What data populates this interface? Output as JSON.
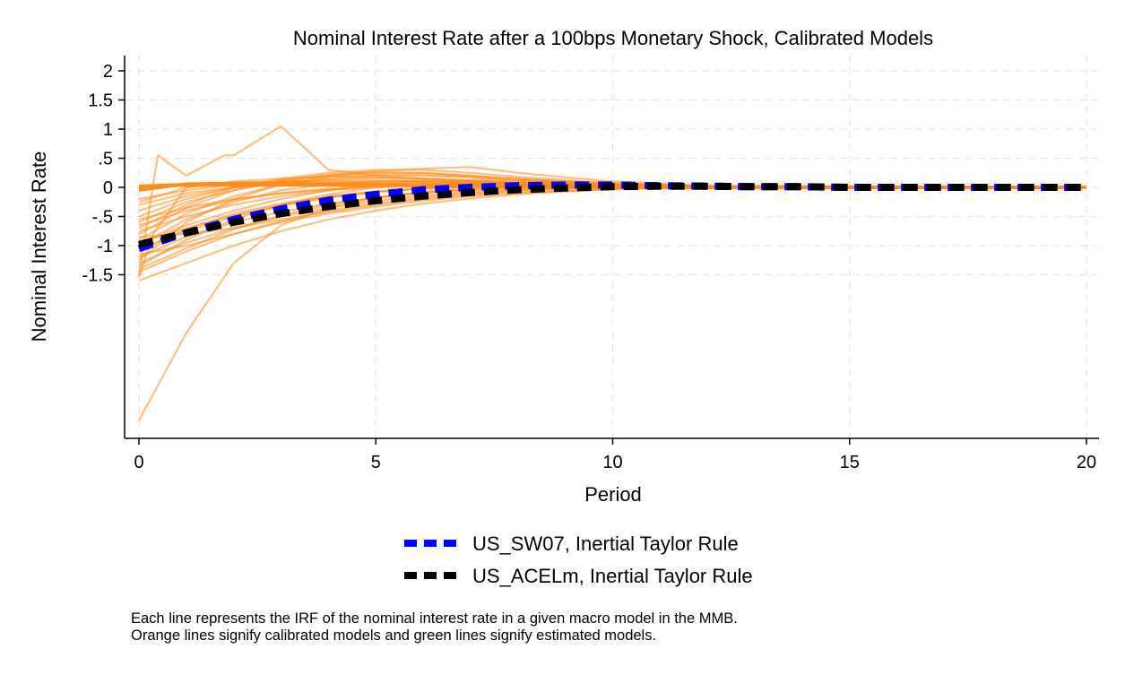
{
  "chart_data": {
    "type": "line",
    "title": "Nominal Interest Rate after a 100bps Monetary Shock, Calibrated Models",
    "xlabel": "Period",
    "ylabel": "Nominal Interest Rate",
    "xlim": [
      0,
      20
    ],
    "ylim": [
      -4.2,
      2.2
    ],
    "x_ticks": [
      0,
      5,
      10,
      15,
      20
    ],
    "x_tick_labels": [
      "0",
      "5",
      "10",
      "15",
      "20"
    ],
    "y_ticks": [
      2,
      1.5,
      1,
      0.5,
      0,
      -0.5,
      -1,
      -1.5
    ],
    "y_tick_labels": [
      "2",
      "1.5",
      "1",
      ".5",
      "0",
      "-.5",
      "-1",
      "-1.5"
    ],
    "grid": true,
    "legend_position": "bottom",
    "colors": {
      "calibrated": "#ff8c1a",
      "us_sw07": "#0000ff",
      "us_acelm": "#000000"
    },
    "highlight_series": [
      {
        "name": "US_SW07, Inertial Taylor Rule",
        "color": "#0000ff",
        "x": [
          0,
          1,
          2,
          3,
          4,
          5,
          6,
          7,
          8,
          9,
          10,
          11,
          12,
          13,
          14,
          15,
          16,
          17,
          18,
          19,
          20
        ],
        "values": [
          -1.05,
          -0.78,
          -0.55,
          -0.37,
          -0.22,
          -0.12,
          -0.04,
          0.0,
          0.03,
          0.04,
          0.04,
          0.03,
          0.02,
          0.01,
          0.01,
          0.0,
          0.0,
          0.0,
          0.0,
          0.0,
          0.0
        ]
      },
      {
        "name": "US_ACELm, Inertial Taylor Rule",
        "color": "#000000",
        "x": [
          0,
          1,
          2,
          3,
          4,
          5,
          6,
          7,
          8,
          9,
          10,
          11,
          12,
          13,
          14,
          15,
          16,
          17,
          18,
          19,
          20
        ],
        "values": [
          -0.98,
          -0.78,
          -0.6,
          -0.45,
          -0.33,
          -0.23,
          -0.15,
          -0.09,
          -0.04,
          -0.01,
          0.01,
          0.02,
          0.02,
          0.01,
          0.01,
          0.0,
          0.0,
          0.0,
          0.0,
          0.0,
          0.0
        ]
      }
    ],
    "calibrated_series": [
      {
        "x": [
          0,
          0.4,
          1,
          1.8,
          2,
          3,
          4,
          5,
          6,
          7,
          8,
          10,
          12,
          20
        ],
        "values": [
          -1.5,
          0.55,
          0.2,
          0.55,
          0.55,
          1.05,
          0.3,
          0.2,
          0.15,
          0.1,
          0.05,
          0.02,
          0.0,
          0.0
        ]
      },
      {
        "x": [
          0,
          1,
          2,
          3,
          4,
          5,
          6,
          7,
          8,
          10,
          12,
          20
        ],
        "values": [
          -4.0,
          -2.5,
          -1.3,
          -0.65,
          -0.35,
          -0.18,
          -0.08,
          -0.03,
          0.0,
          0.01,
          0.0,
          0.0
        ]
      },
      {
        "x": [
          0,
          1,
          2,
          3,
          4,
          5,
          6,
          7,
          8,
          9,
          10,
          12,
          20
        ],
        "values": [
          -1.6,
          -1.3,
          -1.0,
          -0.75,
          -0.55,
          -0.4,
          -0.28,
          -0.19,
          -0.12,
          -0.07,
          -0.03,
          0.0,
          0.0
        ]
      },
      {
        "x": [
          0,
          1,
          2,
          3,
          4,
          5,
          6,
          7,
          8,
          9,
          10,
          12,
          20
        ],
        "values": [
          -1.45,
          -1.1,
          -0.8,
          -0.58,
          -0.4,
          -0.27,
          -0.17,
          -0.1,
          -0.05,
          -0.02,
          0.0,
          0.0,
          0.0
        ]
      },
      {
        "x": [
          0,
          1,
          2,
          3,
          4,
          5,
          6,
          7,
          8,
          9,
          10,
          12,
          20
        ],
        "values": [
          -1.3,
          -0.95,
          -0.7,
          -0.5,
          -0.35,
          -0.23,
          -0.14,
          -0.08,
          -0.04,
          -0.01,
          0.0,
          0.0,
          0.0
        ]
      },
      {
        "x": [
          0,
          1,
          2,
          3,
          4,
          5,
          6,
          7,
          8,
          10,
          12,
          20
        ],
        "values": [
          -1.2,
          -0.85,
          -0.6,
          -0.42,
          -0.28,
          -0.18,
          -0.1,
          -0.05,
          -0.02,
          0.0,
          0.0,
          0.0
        ]
      },
      {
        "x": [
          0,
          1,
          2,
          3,
          4,
          5,
          6,
          7,
          8,
          10,
          12,
          20
        ],
        "values": [
          -1.1,
          -0.72,
          -0.45,
          -0.28,
          -0.15,
          -0.07,
          -0.02,
          0.01,
          0.02,
          0.02,
          0.01,
          0.0
        ]
      },
      {
        "x": [
          0,
          1,
          2,
          3,
          4,
          5,
          6,
          7,
          8,
          10,
          12,
          20
        ],
        "values": [
          -1.0,
          -0.55,
          -0.25,
          -0.05,
          0.05,
          0.1,
          0.12,
          0.1,
          0.08,
          0.04,
          0.01,
          0.0
        ]
      },
      {
        "x": [
          0,
          1,
          2,
          3,
          4,
          5,
          6,
          7,
          8,
          10,
          12,
          20
        ],
        "values": [
          -0.9,
          -0.45,
          -0.15,
          0.05,
          0.15,
          0.2,
          0.2,
          0.17,
          0.12,
          0.05,
          0.01,
          0.0
        ]
      },
      {
        "x": [
          0,
          1,
          2,
          3,
          4,
          5,
          6,
          7,
          8,
          10,
          12,
          20
        ],
        "values": [
          -0.8,
          -0.35,
          -0.05,
          0.12,
          0.22,
          0.26,
          0.25,
          0.2,
          0.14,
          0.06,
          0.02,
          0.0
        ]
      },
      {
        "x": [
          0,
          1,
          2,
          3,
          4,
          5,
          6,
          7,
          8,
          10,
          12,
          20
        ],
        "values": [
          -0.7,
          -0.3,
          0.0,
          0.15,
          0.25,
          0.3,
          0.3,
          0.25,
          0.18,
          0.07,
          0.02,
          0.0
        ]
      },
      {
        "x": [
          0,
          1,
          2,
          3,
          4,
          5,
          6,
          7,
          8,
          10,
          12,
          20
        ],
        "values": [
          -0.6,
          -0.25,
          -0.05,
          0.1,
          0.2,
          0.28,
          0.32,
          0.35,
          0.25,
          0.1,
          0.03,
          0.0
        ]
      },
      {
        "x": [
          0,
          1,
          2,
          3,
          4,
          5,
          6,
          7,
          8,
          10,
          12,
          20
        ],
        "values": [
          -0.5,
          -0.2,
          0.0,
          0.12,
          0.2,
          0.25,
          0.25,
          0.2,
          0.15,
          0.06,
          0.02,
          0.0
        ]
      },
      {
        "x": [
          0,
          1,
          2,
          3,
          4,
          5,
          6,
          7,
          8,
          10,
          12,
          20
        ],
        "values": [
          -0.4,
          -0.15,
          0.0,
          0.08,
          0.13,
          0.16,
          0.15,
          0.12,
          0.08,
          0.03,
          0.01,
          0.0
        ]
      },
      {
        "x": [
          0,
          1,
          2,
          3,
          4,
          5,
          6,
          7,
          8,
          10,
          12,
          20
        ],
        "values": [
          -0.3,
          -0.1,
          0.0,
          0.05,
          0.08,
          0.1,
          0.1,
          0.08,
          0.05,
          0.02,
          0.0,
          0.0
        ]
      },
      {
        "x": [
          0,
          1,
          2,
          3,
          4,
          5,
          6,
          8,
          10,
          12,
          20
        ],
        "values": [
          0.02,
          0.05,
          0.05,
          0.05,
          0.05,
          0.04,
          0.03,
          0.02,
          0.01,
          0.0,
          0.0
        ]
      },
      {
        "x": [
          0,
          1,
          2,
          3,
          4,
          5,
          6,
          8,
          10,
          12,
          20
        ],
        "values": [
          0.0,
          0.04,
          0.04,
          0.04,
          0.04,
          0.04,
          0.03,
          0.02,
          0.01,
          0.0,
          0.0
        ]
      },
      {
        "x": [
          0,
          1,
          2,
          3,
          4,
          5,
          6,
          8,
          10,
          12,
          20
        ],
        "values": [
          -0.05,
          0.06,
          0.07,
          0.07,
          0.06,
          0.05,
          0.04,
          0.02,
          0.01,
          0.0,
          0.0
        ]
      },
      {
        "x": [
          0,
          1,
          2,
          3,
          4,
          5,
          6,
          7,
          8,
          10,
          12,
          20
        ],
        "values": [
          -0.2,
          -0.05,
          0.05,
          0.1,
          0.12,
          0.12,
          0.1,
          0.08,
          0.05,
          0.02,
          0.0,
          0.0
        ]
      },
      {
        "x": [
          0,
          1,
          2,
          3,
          4,
          5,
          6,
          7,
          8,
          10,
          12,
          20
        ],
        "values": [
          -0.25,
          0.0,
          0.1,
          0.15,
          0.18,
          0.17,
          0.15,
          0.12,
          0.08,
          0.03,
          0.01,
          0.0
        ]
      },
      {
        "x": [
          0,
          1,
          2,
          3,
          4,
          5,
          6,
          7,
          8,
          10,
          12,
          20
        ],
        "values": [
          -1.35,
          -0.9,
          -0.55,
          -0.3,
          -0.12,
          0.0,
          0.06,
          0.08,
          0.07,
          0.03,
          0.01,
          0.0
        ]
      },
      {
        "x": [
          0,
          1,
          2,
          3,
          4,
          5,
          6,
          7,
          8,
          10,
          12,
          20
        ],
        "values": [
          -1.25,
          -0.6,
          -0.2,
          0.05,
          0.18,
          0.22,
          0.22,
          0.18,
          0.12,
          0.05,
          0.01,
          0.0
        ]
      },
      {
        "x": [
          0,
          1,
          2,
          3,
          4,
          5,
          6,
          7,
          8,
          10,
          12,
          20
        ],
        "values": [
          -1.15,
          -1.0,
          -0.8,
          -0.6,
          -0.45,
          -0.33,
          -0.23,
          -0.15,
          -0.1,
          -0.03,
          0.0,
          0.0
        ]
      },
      {
        "x": [
          0,
          1,
          2,
          3,
          4,
          5,
          6,
          7,
          8,
          10,
          12,
          20
        ],
        "values": [
          -0.95,
          -0.65,
          -0.4,
          -0.2,
          -0.05,
          0.05,
          0.1,
          0.12,
          0.1,
          0.05,
          0.02,
          0.0
        ]
      },
      {
        "x": [
          0,
          1,
          2,
          3,
          4,
          5,
          6,
          7,
          8,
          10,
          12,
          20
        ],
        "values": [
          -0.85,
          -0.8,
          -0.7,
          -0.55,
          -0.42,
          -0.3,
          -0.2,
          -0.12,
          -0.07,
          -0.02,
          0.0,
          0.0
        ]
      },
      {
        "x": [
          0,
          1,
          2,
          3,
          4,
          5,
          6,
          7,
          8,
          10,
          12,
          20
        ],
        "values": [
          -0.75,
          -0.5,
          -0.3,
          -0.15,
          -0.05,
          0.02,
          0.05,
          0.06,
          0.05,
          0.02,
          0.0,
          0.0
        ]
      },
      {
        "x": [
          0,
          1,
          2,
          3,
          4,
          5,
          6,
          7,
          8,
          10,
          12,
          20
        ],
        "values": [
          -0.65,
          -0.4,
          -0.22,
          -0.1,
          -0.02,
          0.03,
          0.05,
          0.05,
          0.04,
          0.02,
          0.0,
          0.0
        ]
      },
      {
        "x": [
          0,
          1,
          2,
          3,
          4,
          5,
          6,
          7,
          8,
          10,
          12,
          20
        ],
        "values": [
          -0.55,
          -0.35,
          -0.2,
          -0.1,
          -0.04,
          0.0,
          0.02,
          0.03,
          0.03,
          0.01,
          0.0,
          0.0
        ]
      },
      {
        "x": [
          0,
          1,
          2,
          3,
          4,
          5,
          6,
          7,
          8,
          10,
          12,
          20
        ],
        "values": [
          -1.05,
          -0.75,
          -0.5,
          -0.32,
          -0.18,
          -0.08,
          -0.02,
          0.02,
          0.03,
          0.02,
          0.01,
          0.0
        ]
      },
      {
        "x": [
          0,
          1,
          2,
          3,
          4,
          5,
          6,
          7,
          8,
          10,
          12,
          20
        ],
        "values": [
          -0.95,
          -0.7,
          -0.48,
          -0.3,
          -0.17,
          -0.08,
          -0.02,
          0.01,
          0.02,
          0.02,
          0.01,
          0.0
        ]
      },
      {
        "x": [
          0,
          0.3,
          1,
          2,
          3,
          4,
          5,
          6,
          8,
          10,
          12,
          20
        ],
        "values": [
          -1.55,
          -0.8,
          0.0,
          0.08,
          0.1,
          0.1,
          0.09,
          0.07,
          0.04,
          0.02,
          0.0,
          0.0
        ]
      },
      {
        "x": [
          0,
          1,
          2,
          3,
          4,
          5,
          6,
          7,
          8,
          10,
          12,
          20
        ],
        "values": [
          -1.4,
          -1.05,
          -0.72,
          -0.48,
          -0.3,
          -0.17,
          -0.08,
          -0.02,
          0.01,
          0.02,
          0.01,
          0.0
        ]
      }
    ],
    "legend": [
      {
        "label": "US_SW07, Inertial Taylor Rule",
        "color": "#0000ff"
      },
      {
        "label": "US_ACELm, Inertial Taylor Rule",
        "color": "#000000"
      }
    ]
  },
  "notes": {
    "line1": "Each line represents the IRF of the nominal interest rate in a given macro model in the MMB.",
    "line2": "Orange lines signify calibrated models and green lines signify estimated models."
  }
}
